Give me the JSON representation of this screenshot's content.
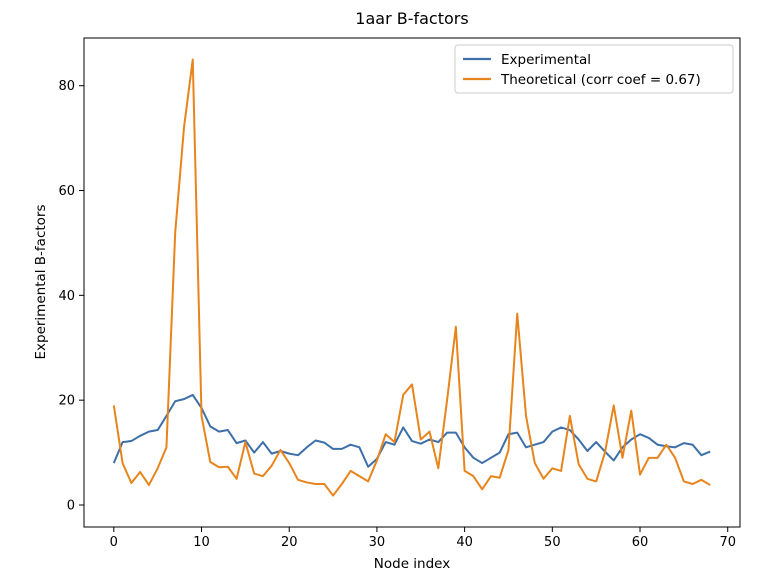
{
  "chart_data": {
    "type": "line",
    "title": "1aar B-factors",
    "xlabel": "Node index",
    "ylabel": "Experimental B-factors",
    "xlim": [
      -3.4,
      71.4
    ],
    "ylim": [
      -4.2,
      89.1
    ],
    "xticks": [
      0,
      10,
      20,
      30,
      40,
      50,
      60,
      70
    ],
    "yticks": [
      0,
      20,
      40,
      60,
      80
    ],
    "grid": false,
    "legend_position": "upper right",
    "x": [
      0,
      1,
      2,
      3,
      4,
      5,
      6,
      7,
      8,
      9,
      10,
      11,
      12,
      13,
      14,
      15,
      16,
      17,
      18,
      19,
      20,
      21,
      22,
      23,
      24,
      25,
      26,
      27,
      28,
      29,
      30,
      31,
      32,
      33,
      34,
      35,
      36,
      37,
      38,
      39,
      40,
      41,
      42,
      43,
      44,
      45,
      46,
      47,
      48,
      49,
      50,
      51,
      52,
      53,
      54,
      55,
      56,
      57,
      58,
      59,
      60,
      61,
      62,
      63,
      64,
      65,
      66,
      67,
      68
    ],
    "series": [
      {
        "name": "Experimental",
        "color": "#3d6fa8",
        "values": [
          8.0,
          12.0,
          12.2,
          13.2,
          14.0,
          14.3,
          17.0,
          19.8,
          20.2,
          21.0,
          18.5,
          15.0,
          14.0,
          14.3,
          11.8,
          12.3,
          10.0,
          12.0,
          9.8,
          10.3,
          9.8,
          9.5,
          11.0,
          12.3,
          11.9,
          10.7,
          10.7,
          11.5,
          11.0,
          7.3,
          8.8,
          12.0,
          11.5,
          14.8,
          12.2,
          11.7,
          12.5,
          12.0,
          13.8,
          13.8,
          11.0,
          9.0,
          8.0,
          9.0,
          10.0,
          13.5,
          13.8,
          11.0,
          11.5,
          12.0,
          14.0,
          14.8,
          14.3,
          12.5,
          10.3,
          12.0,
          10.2,
          8.5,
          11.0,
          12.5,
          13.5,
          12.8,
          11.5,
          11.2,
          11.0,
          11.8,
          11.5,
          9.5,
          10.2
        ]
      },
      {
        "name": "Theoretical (corr coef = 0.67)",
        "color": "#e8841c",
        "values": [
          19.0,
          8.0,
          4.2,
          6.3,
          3.8,
          7.0,
          11.0,
          52.0,
          72.0,
          85.0,
          17.0,
          8.2,
          7.2,
          7.3,
          5.0,
          12.0,
          6.0,
          5.5,
          7.5,
          10.5,
          8.0,
          4.8,
          4.3,
          4.0,
          4.0,
          1.8,
          4.0,
          6.5,
          5.5,
          4.5,
          8.5,
          13.5,
          12.0,
          21.0,
          23.0,
          12.5,
          14.0,
          7.0,
          20.0,
          34.0,
          6.5,
          5.5,
          3.0,
          5.5,
          5.2,
          10.5,
          36.5,
          17.0,
          8.0,
          5.0,
          7.0,
          6.5,
          17.0,
          7.8,
          5.0,
          4.5,
          10.0,
          19.0,
          9.0,
          18.0,
          5.8,
          9.0,
          9.0,
          11.5,
          9.0,
          4.5,
          4.0,
          4.8,
          3.8
        ]
      }
    ]
  }
}
